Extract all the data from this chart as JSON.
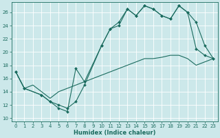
{
  "xlabel": "Humidex (Indice chaleur)",
  "bg_color": "#cce8ea",
  "grid_color": "#ffffff",
  "line_color": "#1a6b5e",
  "xlim": [
    -0.5,
    23.5
  ],
  "ylim": [
    9.5,
    27.5
  ],
  "xticks": [
    0,
    1,
    2,
    3,
    4,
    5,
    6,
    7,
    8,
    9,
    10,
    11,
    12,
    13,
    14,
    15,
    16,
    17,
    18,
    19,
    20,
    21,
    22,
    23
  ],
  "yticks": [
    10,
    12,
    14,
    16,
    18,
    20,
    22,
    24,
    26
  ],
  "line1_x": [
    0,
    1,
    3,
    4,
    5,
    6,
    7,
    8,
    10,
    11,
    12,
    13,
    14,
    15,
    16,
    17,
    18,
    19,
    20,
    21,
    22,
    23
  ],
  "line1_y": [
    17.0,
    14.5,
    13.5,
    12.5,
    11.5,
    11.0,
    17.5,
    15.5,
    21.0,
    23.5,
    24.0,
    26.5,
    25.5,
    27.0,
    26.5,
    25.5,
    25.0,
    27.0,
    26.0,
    24.5,
    21.0,
    19.0
  ],
  "line2_x": [
    0,
    1,
    3,
    4,
    5,
    6,
    7,
    8,
    10,
    11,
    12,
    13,
    14,
    15,
    16,
    17,
    18,
    19,
    20,
    21,
    22,
    23
  ],
  "line2_y": [
    17.0,
    14.5,
    13.5,
    12.5,
    12.0,
    11.5,
    12.5,
    15.0,
    21.0,
    23.5,
    24.5,
    26.5,
    25.5,
    27.0,
    26.5,
    25.5,
    25.0,
    27.0,
    26.0,
    20.5,
    19.5,
    19.0
  ],
  "line3_x": [
    0,
    1,
    2,
    3,
    4,
    5,
    6,
    7,
    8,
    9,
    10,
    11,
    12,
    13,
    14,
    15,
    16,
    17,
    18,
    19,
    20,
    21,
    22,
    23
  ],
  "line3_y": [
    17.0,
    14.5,
    15.0,
    14.0,
    13.0,
    14.0,
    14.5,
    15.0,
    15.5,
    16.0,
    16.5,
    17.0,
    17.5,
    18.0,
    18.5,
    19.0,
    19.0,
    19.2,
    19.5,
    19.5,
    19.0,
    18.0,
    18.5,
    19.0
  ]
}
